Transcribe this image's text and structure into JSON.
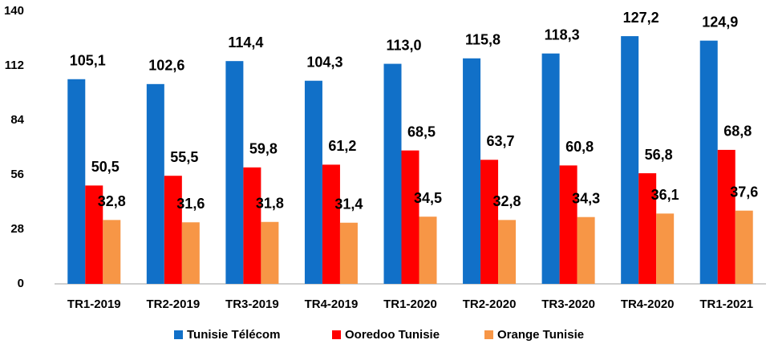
{
  "chart_data": {
    "type": "bar",
    "categories": [
      "TR1-2019",
      "TR2-2019",
      "TR3-2019",
      "TR4-2019",
      "TR1-2020",
      "TR2-2020",
      "TR3-2020",
      "TR4-2020",
      "TR1-2021"
    ],
    "series": [
      {
        "name": "Tunisie Télécom",
        "color": "#1170c8",
        "values": [
          105.1,
          102.6,
          114.4,
          104.3,
          113.0,
          115.8,
          118.3,
          127.2,
          124.9
        ],
        "value_labels": [
          "105,1",
          "102,6",
          "114,4",
          "104,3",
          "113,0",
          "115,8",
          "118,3",
          "127,2",
          "124,9"
        ]
      },
      {
        "name": "Ooredoo Tunisie",
        "color": "#ff0000",
        "values": [
          50.5,
          55.5,
          59.8,
          61.2,
          68.5,
          63.7,
          60.8,
          56.8,
          68.8
        ],
        "value_labels": [
          "50,5",
          "55,5",
          "59,8",
          "61,2",
          "68,5",
          "63,7",
          "60,8",
          "56,8",
          "68,8"
        ]
      },
      {
        "name": "Orange Tunisie",
        "color": "#f79646",
        "values": [
          32.8,
          31.6,
          31.8,
          31.4,
          34.5,
          32.8,
          34.3,
          36.1,
          37.6
        ],
        "value_labels": [
          "32,8",
          "31,6",
          "31,8",
          "31,4",
          "34,5",
          "32,8",
          "34,3",
          "36,1",
          "37,6"
        ]
      }
    ],
    "ylim": [
      0,
      140
    ],
    "yticks": [
      0,
      28,
      56,
      84,
      112,
      140
    ],
    "grid": false,
    "legend": "bottom"
  }
}
